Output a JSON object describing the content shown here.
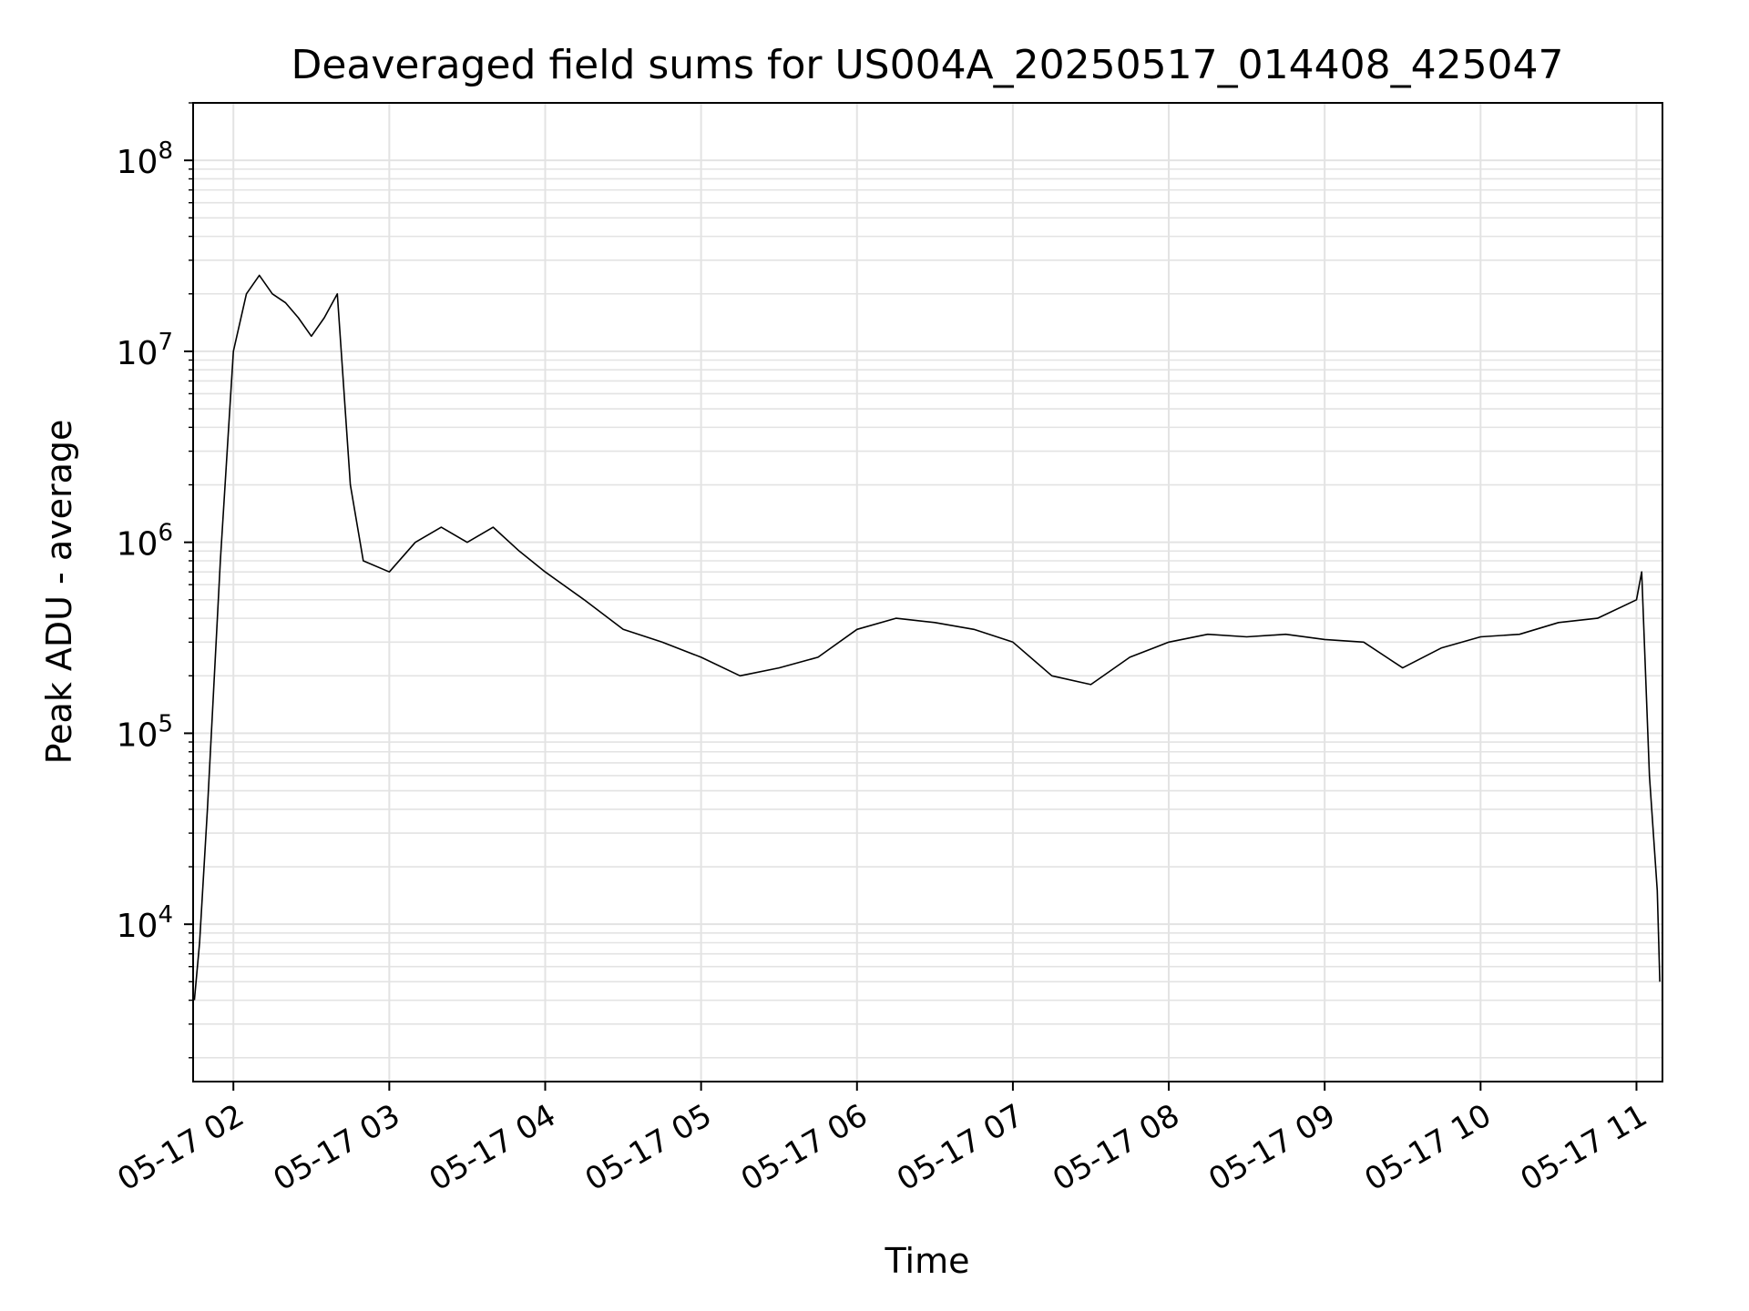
{
  "chart_data": {
    "type": "line",
    "title": "Deaveraged field sums for US004A_20250517_014408_425047",
    "xlabel": "Time",
    "ylabel": "Peak ADU - average",
    "yscale": "log",
    "ylim": [
      1500,
      200000000
    ],
    "xlim": [
      "2025-05-17 01:44:30",
      "2025-05-17 11:10:00"
    ],
    "grid": "on (major and minor, light gray)",
    "line_color": "#000000",
    "x_tick_labels": [
      "05-17 02",
      "05-17 03",
      "05-17 04",
      "05-17 05",
      "05-17 06",
      "05-17 07",
      "05-17 08",
      "05-17 09",
      "05-17 10",
      "05-17 11"
    ],
    "x_ticks": [
      "2025-05-17 02:00",
      "2025-05-17 03:00",
      "2025-05-17 04:00",
      "2025-05-17 05:00",
      "2025-05-17 06:00",
      "2025-05-17 07:00",
      "2025-05-17 08:00",
      "2025-05-17 09:00",
      "2025-05-17 10:00",
      "2025-05-17 11:00"
    ],
    "y_ticks": [
      {
        "value": 10000,
        "base": "10",
        "exp": "4"
      },
      {
        "value": 100000,
        "base": "10",
        "exp": "5"
      },
      {
        "value": 1000000,
        "base": "10",
        "exp": "6"
      },
      {
        "value": 10000000,
        "base": "10",
        "exp": "7"
      },
      {
        "value": 100000000,
        "base": "10",
        "exp": "8"
      }
    ],
    "series": [
      {
        "x": [
          "2025-05-17 01:45",
          "2025-05-17 01:47",
          "2025-05-17 01:50",
          "2025-05-17 01:55",
          "2025-05-17 02:00",
          "2025-05-17 02:05",
          "2025-05-17 02:10",
          "2025-05-17 02:15",
          "2025-05-17 02:20",
          "2025-05-17 02:25",
          "2025-05-17 02:30",
          "2025-05-17 02:35",
          "2025-05-17 02:40",
          "2025-05-17 02:45",
          "2025-05-17 02:50",
          "2025-05-17 03:00",
          "2025-05-17 03:10",
          "2025-05-17 03:20",
          "2025-05-17 03:30",
          "2025-05-17 03:40",
          "2025-05-17 03:50",
          "2025-05-17 04:00",
          "2025-05-17 04:15",
          "2025-05-17 04:30",
          "2025-05-17 04:45",
          "2025-05-17 05:00",
          "2025-05-17 05:15",
          "2025-05-17 05:30",
          "2025-05-17 05:45",
          "2025-05-17 06:00",
          "2025-05-17 06:15",
          "2025-05-17 06:30",
          "2025-05-17 06:45",
          "2025-05-17 07:00",
          "2025-05-17 07:15",
          "2025-05-17 07:30",
          "2025-05-17 07:45",
          "2025-05-17 08:00",
          "2025-05-17 08:15",
          "2025-05-17 08:30",
          "2025-05-17 08:45",
          "2025-05-17 09:00",
          "2025-05-17 09:15",
          "2025-05-17 09:30",
          "2025-05-17 09:45",
          "2025-05-17 10:00",
          "2025-05-17 10:15",
          "2025-05-17 10:30",
          "2025-05-17 10:45",
          "2025-05-17 11:00",
          "2025-05-17 11:02",
          "2025-05-17 11:05",
          "2025-05-17 11:08",
          "2025-05-17 11:09"
        ],
        "values": [
          4000,
          8000,
          40000,
          800000,
          10000000,
          20000000,
          25000000,
          20000000,
          18000000,
          15000000,
          12000000,
          15000000,
          20000000,
          2000000,
          800000,
          700000,
          1000000,
          1200000,
          1000000,
          1200000,
          900000,
          700000,
          500000,
          350000,
          300000,
          250000,
          200000,
          220000,
          250000,
          350000,
          400000,
          380000,
          350000,
          300000,
          200000,
          180000,
          250000,
          300000,
          330000,
          320000,
          330000,
          310000,
          300000,
          220000,
          280000,
          320000,
          330000,
          380000,
          400000,
          500000,
          700000,
          60000,
          15000,
          5000
        ]
      }
    ]
  }
}
